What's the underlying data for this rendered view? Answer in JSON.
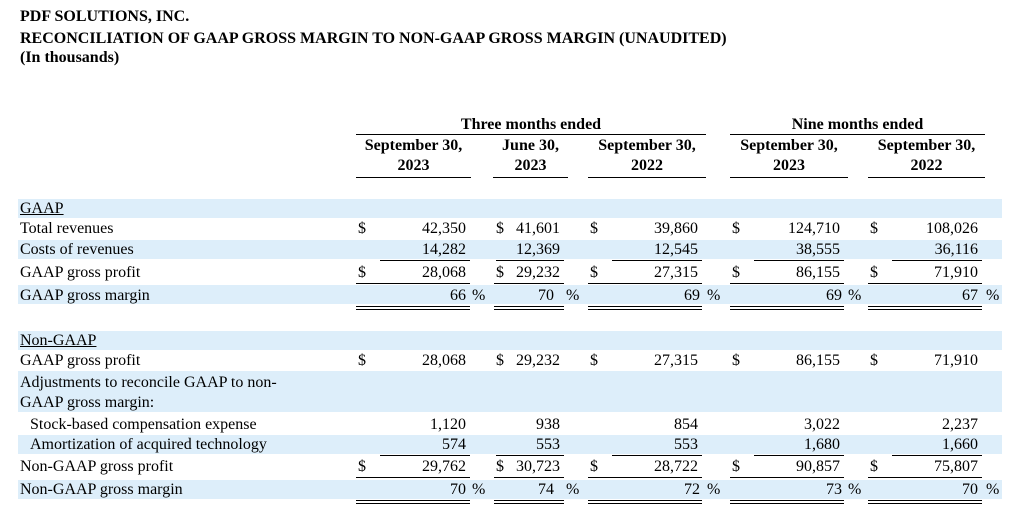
{
  "header": {
    "company": "PDF SOLUTIONS, INC.",
    "title": "RECONCILIATION OF GAAP GROSS MARGIN TO NON-GAAP GROSS MARGIN (UNAUDITED)",
    "units": "(In thousands)"
  },
  "columns": {
    "group_three": "Three months ended",
    "group_nine": "Nine months ended",
    "col1": [
      "September 30,",
      "2023"
    ],
    "col2": [
      "June 30,",
      "2023"
    ],
    "col3": [
      "September 30,",
      "2022"
    ],
    "col4": [
      "September 30,",
      "2023"
    ],
    "col5": [
      "September 30,",
      "2022"
    ]
  },
  "currency_symbol": "$",
  "percent_symbol": "%",
  "gaap": {
    "section_label": "GAAP",
    "rows": [
      {
        "label": "Total revenues",
        "values": [
          "42,350",
          "41,601",
          "39,860",
          "124,710",
          "108,026"
        ]
      },
      {
        "label": "Costs of revenues",
        "values": [
          "14,282",
          "12,369",
          "12,545",
          "38,555",
          "36,116"
        ]
      },
      {
        "label": "GAAP gross profit",
        "values": [
          "28,068",
          "29,232",
          "27,315",
          "86,155",
          "71,910"
        ]
      },
      {
        "label": "GAAP gross margin",
        "values": [
          "66",
          "70",
          "69",
          "69",
          "67"
        ]
      }
    ]
  },
  "non_gaap": {
    "section_label": "Non-GAAP",
    "rows": [
      {
        "label": "GAAP gross profit",
        "values": [
          "28,068",
          "29,232",
          "27,315",
          "86,155",
          "71,910"
        ]
      },
      {
        "label_line1": "Adjustments to reconcile GAAP to non-",
        "label_line2": "GAAP gross margin:"
      },
      {
        "label": "Stock-based compensation expense",
        "values": [
          "1,120",
          "938",
          "854",
          "3,022",
          "2,237"
        ]
      },
      {
        "label": "Amortization of acquired technology",
        "values": [
          "574",
          "553",
          "553",
          "1,680",
          "1,660"
        ]
      },
      {
        "label": "Non-GAAP gross profit",
        "values": [
          "29,762",
          "30,723",
          "28,722",
          "90,857",
          "75,807"
        ]
      },
      {
        "label": "Non-GAAP gross margin",
        "values": [
          "70",
          "74",
          "72",
          "73",
          "70"
        ]
      }
    ]
  }
}
